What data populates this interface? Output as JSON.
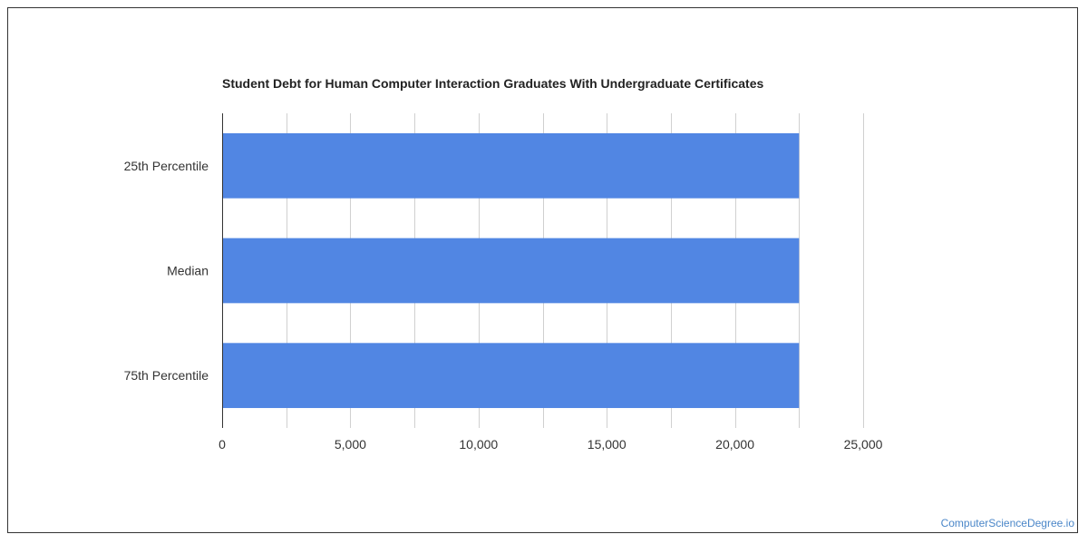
{
  "chart_data": {
    "type": "bar",
    "orientation": "horizontal",
    "title": "Student Debt for Human Computer Interaction Graduates With Undergraduate Certificates",
    "categories": [
      "25th Percentile",
      "Median",
      "75th Percentile"
    ],
    "values": [
      22500,
      22500,
      22500
    ],
    "xlim": [
      0,
      25000
    ],
    "xticks": [
      0,
      5000,
      10000,
      15000,
      20000,
      25000
    ],
    "xtick_labels": [
      "0",
      "5,000",
      "10,000",
      "15,000",
      "20,000",
      "25,000"
    ],
    "xlabel": "",
    "ylabel": "",
    "grid": true,
    "bar_color": "#5186e3"
  },
  "watermark": "ComputerScienceDegree.io",
  "colors": {
    "gridline": "#d0d0d0",
    "axis": "#333333",
    "label_text": "#333333",
    "watermark": "#4a86c8"
  }
}
